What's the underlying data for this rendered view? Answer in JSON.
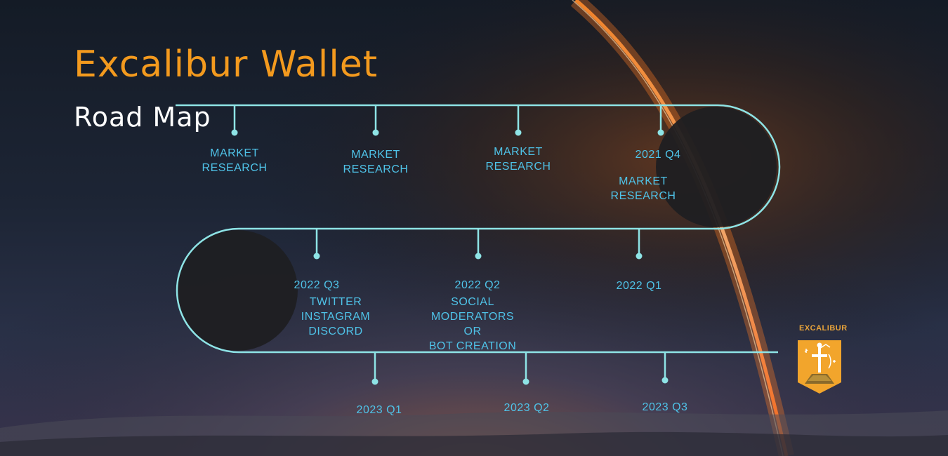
{
  "header": {
    "title": "Excalibur Wallet",
    "subtitle": "Road Map"
  },
  "roadmap": {
    "row1": [
      {
        "lines": [
          "MARKET",
          "RESEARCH"
        ]
      },
      {
        "lines": [
          "MARKET",
          "RESEARCH"
        ]
      },
      {
        "lines": [
          "MARKET",
          "RESEARCH"
        ]
      },
      {
        "date": "2021 Q4",
        "lines": [
          "MARKET",
          "RESEARCH"
        ]
      }
    ],
    "row2": [
      {
        "date": "2022 Q1"
      },
      {
        "date": "2022 Q2",
        "lines": [
          "SOCIAL",
          "MODERATORS",
          "OR",
          "BOT CREATION"
        ]
      },
      {
        "date": "2022 Q3",
        "lines": [
          "TWITTER",
          "INSTAGRAM",
          "DISCORD"
        ]
      }
    ],
    "row3": [
      {
        "date": "2023 Q1"
      },
      {
        "date": "2023 Q2"
      },
      {
        "date": "2023 Q3"
      }
    ]
  },
  "logo": {
    "text": "EXCALIBUR",
    "icon": "sword-in-stone-icon"
  },
  "colors": {
    "title": "#f39a1e",
    "subtitle": "#ffffff",
    "line": "#8ee4e6",
    "label": "#4fc3e8",
    "logo_bg": "#f2a52c"
  }
}
